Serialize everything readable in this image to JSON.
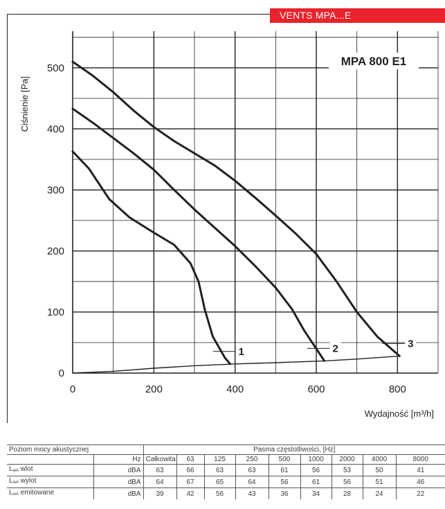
{
  "brand_label": "VENTS MPA...E",
  "chart_data": {
    "type": "line",
    "title": "MPA 800 E1",
    "xlabel": "Wydajność [m³/h]",
    "ylabel": "Ciśnienie [Pa]",
    "xlim": [
      0,
      900
    ],
    "ylim": [
      0,
      560
    ],
    "x_ticks": [
      0,
      200,
      400,
      600,
      800
    ],
    "y_ticks": [
      0,
      100,
      200,
      300,
      400,
      500
    ],
    "grid": true,
    "series": [
      {
        "name": "1",
        "points": [
          [
            0,
            363
          ],
          [
            40,
            335
          ],
          [
            90,
            285
          ],
          [
            140,
            255
          ],
          [
            200,
            230
          ],
          [
            250,
            210
          ],
          [
            290,
            180
          ],
          [
            310,
            150
          ],
          [
            325,
            105
          ],
          [
            345,
            60
          ],
          [
            375,
            25
          ],
          [
            388,
            15
          ]
        ]
      },
      {
        "name": "2",
        "points": [
          [
            0,
            433
          ],
          [
            50,
            410
          ],
          [
            100,
            385
          ],
          [
            150,
            360
          ],
          [
            200,
            333
          ],
          [
            250,
            300
          ],
          [
            300,
            268
          ],
          [
            350,
            238
          ],
          [
            400,
            208
          ],
          [
            450,
            175
          ],
          [
            500,
            140
          ],
          [
            540,
            105
          ],
          [
            570,
            70
          ],
          [
            600,
            40
          ],
          [
            620,
            20
          ]
        ]
      },
      {
        "name": "3",
        "points": [
          [
            0,
            510
          ],
          [
            50,
            487
          ],
          [
            100,
            460
          ],
          [
            150,
            430
          ],
          [
            200,
            403
          ],
          [
            250,
            380
          ],
          [
            300,
            360
          ],
          [
            350,
            340
          ],
          [
            400,
            315
          ],
          [
            450,
            287
          ],
          [
            500,
            258
          ],
          [
            550,
            228
          ],
          [
            600,
            195
          ],
          [
            650,
            150
          ],
          [
            700,
            100
          ],
          [
            750,
            60
          ],
          [
            805,
            28
          ]
        ]
      },
      {
        "name": "system",
        "points": [
          [
            0,
            0
          ],
          [
            100,
            3
          ],
          [
            200,
            8
          ],
          [
            300,
            12
          ],
          [
            400,
            15
          ],
          [
            500,
            17
          ],
          [
            620,
            20
          ],
          [
            700,
            23
          ],
          [
            805,
            28
          ]
        ]
      }
    ],
    "curve_labels": [
      "1",
      "2",
      "3"
    ]
  },
  "table": {
    "header_left": "Poziom mocy akustycznej",
    "header_right": "Pasma częstotliwości, [Hz]",
    "hz_label": "Hz",
    "columns": [
      "Całkowita",
      "63",
      "125",
      "250",
      "500",
      "1000",
      "2000",
      "4000",
      "8000"
    ],
    "rows": [
      {
        "label_main": "L",
        "label_sub": "wA",
        "label_rest": " wlot",
        "unit": "dBA",
        "values": [
          "63",
          "66",
          "63",
          "63",
          "61",
          "56",
          "53",
          "50",
          "41"
        ]
      },
      {
        "label_main": "L",
        "label_sub": "wA",
        "label_rest": " wylot",
        "unit": "dBA",
        "values": [
          "64",
          "67",
          "65",
          "64",
          "56",
          "61",
          "56",
          "51",
          "46"
        ]
      },
      {
        "label_main": "L",
        "label_sub": "wA",
        "label_rest": " emitowane",
        "unit": "dBA",
        "values": [
          "39",
          "42",
          "56",
          "43",
          "36",
          "34",
          "28",
          "24",
          "22"
        ]
      }
    ]
  }
}
